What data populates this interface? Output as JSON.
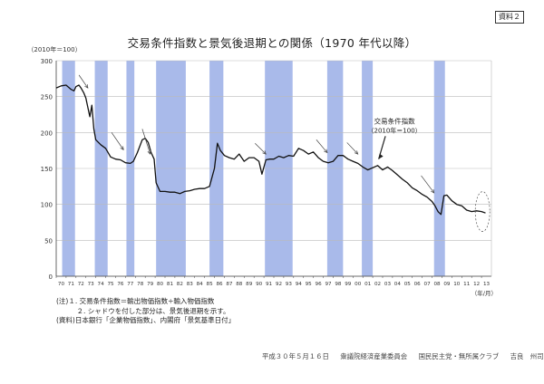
{
  "document_label": "資料２",
  "footer": {
    "date": "平成３０年５月１６日",
    "committee": "衆議院経済産業委員会",
    "party": "国民民主党・無所属クラブ",
    "speaker": "吉良　州司"
  },
  "notes": {
    "note1": "(注)１. 交易条件指数＝輸出物価指数÷輸入物価指数",
    "note2": "　　　２. シャドウを付した部分は、景気後退期を示す。",
    "source": "(資料)日本銀行「企業物価指数」、内閣府「景気基準日付」"
  },
  "colors": {
    "shading": "#9aaee6",
    "line": "#111111",
    "grid": "#bbbbbb"
  },
  "chart_data": {
    "type": "line",
    "title": "交易条件指数と景気後退期との関係（1970 年代以降）",
    "ylabel": "（2010年＝100）",
    "xlabel": "（年/月）",
    "ylim": [
      0,
      300
    ],
    "xlim": [
      1970.0,
      2014.0
    ],
    "yticks": [
      0,
      50,
      100,
      150,
      200,
      250,
      300
    ],
    "xtick_labels": [
      "70",
      "71",
      "72",
      "73",
      "74",
      "75",
      "76",
      "77",
      "78",
      "79",
      "80",
      "81",
      "82",
      "83",
      "84",
      "85",
      "86",
      "87",
      "88",
      "89",
      "90",
      "91",
      "92",
      "93",
      "94",
      "95",
      "96",
      "97",
      "98",
      "99",
      "00",
      "01",
      "02",
      "03",
      "04",
      "05",
      "06",
      "07",
      "08",
      "09",
      "10",
      "11",
      "12",
      "13"
    ],
    "grid": true,
    "annotation": {
      "label": "交易条件指数",
      "sublabel": "（2010年＝100）"
    },
    "recessions": [
      [
        1970.6,
        1971.9
      ],
      [
        1973.9,
        1975.2
      ],
      [
        1977.1,
        1977.9
      ],
      [
        1980.1,
        1983.1
      ],
      [
        1985.5,
        1986.9
      ],
      [
        1991.1,
        1993.9
      ],
      [
        1997.4,
        1999.0
      ],
      [
        2000.9,
        2002.0
      ],
      [
        2008.2,
        2009.3
      ]
    ],
    "series": [
      {
        "x": [
          1970.0,
          1970.5,
          1971.0,
          1971.5,
          1971.8,
          1972.0,
          1972.3,
          1972.5,
          1972.8,
          1973.0,
          1973.2,
          1973.4,
          1973.6,
          1973.8,
          1974.0,
          1974.5,
          1975.0,
          1975.5,
          1976.0,
          1976.5,
          1977.0,
          1977.5,
          1977.8,
          1978.2,
          1978.7,
          1979.0,
          1979.3,
          1979.6,
          1979.9,
          1980.1,
          1980.5,
          1981.0,
          1981.5,
          1982.0,
          1982.5,
          1983.0,
          1983.5,
          1984.0,
          1984.5,
          1985.0,
          1985.5,
          1986.0,
          1986.3,
          1986.6,
          1987.0,
          1987.5,
          1988.0,
          1988.5,
          1989.0,
          1989.5,
          1990.0,
          1990.5,
          1990.8,
          1991.2,
          1991.6,
          1992.0,
          1992.5,
          1993.0,
          1993.5,
          1994.0,
          1994.5,
          1995.0,
          1995.5,
          1996.0,
          1996.5,
          1997.0,
          1997.5,
          1998.0,
          1998.5,
          1999.0,
          1999.5,
          2000.0,
          2000.5,
          2001.0,
          2001.5,
          2002.0,
          2002.5,
          2003.0,
          2003.5,
          2004.0,
          2004.5,
          2005.0,
          2005.5,
          2006.0,
          2006.5,
          2007.0,
          2007.5,
          2008.0,
          2008.3,
          2008.6,
          2008.9,
          2009.2,
          2009.5,
          2010.0,
          2010.5,
          2011.0,
          2011.5,
          2012.0,
          2012.5,
          2013.0,
          2013.4
        ],
        "values": [
          262,
          265,
          266,
          260,
          258,
          264,
          266,
          262,
          255,
          248,
          235,
          222,
          238,
          205,
          190,
          183,
          178,
          166,
          163,
          162,
          158,
          157,
          160,
          172,
          190,
          192,
          186,
          172,
          163,
          130,
          118,
          118,
          117,
          117,
          115,
          118,
          119,
          121,
          122,
          122,
          125,
          150,
          185,
          175,
          168,
          165,
          163,
          170,
          160,
          165,
          165,
          160,
          142,
          162,
          163,
          163,
          167,
          165,
          168,
          167,
          178,
          175,
          170,
          173,
          165,
          160,
          158,
          160,
          168,
          168,
          163,
          160,
          157,
          152,
          148,
          151,
          154,
          148,
          152,
          147,
          141,
          135,
          130,
          123,
          119,
          114,
          110,
          104,
          98,
          90,
          86,
          112,
          113,
          105,
          100,
          98,
          92,
          90,
          91,
          90,
          88
        ]
      }
    ]
  }
}
